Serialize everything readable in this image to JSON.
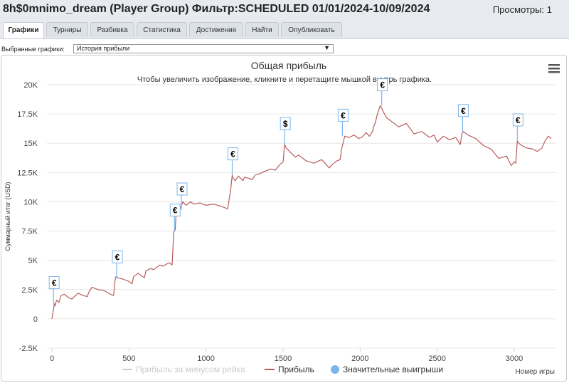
{
  "header": {
    "title": "8h$0mnimo_dream (Player Group) Фильтр:SCHEDULED 01/01/2024-10/09/2024",
    "views": "Просмотры: 1"
  },
  "tabs": [
    {
      "label": "Графики",
      "active": true
    },
    {
      "label": "Турниры"
    },
    {
      "label": "Разбивка"
    },
    {
      "label": "Статистика"
    },
    {
      "label": "Достижения"
    },
    {
      "label": "Найти"
    },
    {
      "label": "Опубликовать"
    }
  ],
  "graph_selector": {
    "label": "Выбранные графики:",
    "value": "История прибыли"
  },
  "chart_menu_icon": "hamburger-menu-icon",
  "chart_data": {
    "type": "line",
    "title": "Общая прибыль",
    "subtitle": "Чтобы увеличить изображение, кликните и перетащите мышкой внутрь графика.",
    "ylabel": "Суммарный итог (USD)",
    "xlabel": "Номер игры",
    "ylim": [
      -2500,
      20000
    ],
    "xlim": [
      0,
      3250
    ],
    "y_ticks": [
      "-2.5K",
      "0",
      "2.5K",
      "5K",
      "7.5K",
      "10K",
      "12.5K",
      "15K",
      "17.5K",
      "20K"
    ],
    "y_tick_values": [
      -2500,
      0,
      2500,
      5000,
      7500,
      10000,
      12500,
      15000,
      17500,
      20000
    ],
    "x_ticks": [
      "0",
      "500",
      "1000",
      "1500",
      "2000",
      "2500",
      "3000"
    ],
    "x_tick_values": [
      0,
      500,
      1000,
      1500,
      2000,
      2500,
      3000
    ],
    "grid": "horizontal",
    "legend_position": "bottom",
    "series": [
      {
        "name": "Прибыль за минусом рейка",
        "color": "#cccccc",
        "hidden": true,
        "x": [],
        "y": []
      },
      {
        "name": "Прибыль",
        "color": "#b85c5c",
        "x": [
          0,
          10,
          15,
          20,
          30,
          45,
          60,
          80,
          110,
          130,
          170,
          200,
          230,
          240,
          260,
          300,
          340,
          380,
          400,
          410,
          415,
          430,
          460,
          500,
          520,
          530,
          560,
          600,
          610,
          640,
          660,
          700,
          720,
          760,
          780,
          790,
          800,
          805,
          820,
          835,
          850,
          870,
          900,
          920,
          960,
          1000,
          1050,
          1100,
          1140,
          1160,
          1170,
          1175,
          1190,
          1210,
          1240,
          1250,
          1280,
          1300,
          1320,
          1350,
          1380,
          1420,
          1450,
          1480,
          1500,
          1510,
          1520,
          1550,
          1580,
          1600,
          1650,
          1700,
          1750,
          1800,
          1820,
          1850,
          1870,
          1880,
          1900,
          1930,
          1960,
          1990,
          2010,
          2040,
          2060,
          2080,
          2090,
          2100,
          2110,
          2130,
          2140,
          2150,
          2170,
          2200,
          2250,
          2300,
          2350,
          2400,
          2450,
          2480,
          2500,
          2540,
          2580,
          2620,
          2650,
          2660,
          2670,
          2700,
          2750,
          2800,
          2850,
          2900,
          2950,
          2980,
          3000,
          3010,
          3020,
          3030,
          3050,
          3080,
          3120,
          3150,
          3180,
          3200,
          3220,
          3240
        ],
        "y": [
          0,
          800,
          1300,
          1100,
          1600,
          1400,
          2000,
          2100,
          1800,
          1700,
          2200,
          2000,
          1900,
          2300,
          2700,
          2500,
          2400,
          2100,
          2000,
          3300,
          3600,
          3500,
          3400,
          3200,
          3000,
          3600,
          3900,
          3500,
          4100,
          4300,
          4200,
          4600,
          4500,
          4800,
          4600,
          7400,
          7600,
          8800,
          9300,
          9500,
          10000,
          9700,
          10000,
          9800,
          9900,
          9700,
          9800,
          9600,
          9400,
          11000,
          12300,
          12000,
          11800,
          12200,
          11800,
          12100,
          12000,
          11900,
          12300,
          12400,
          12600,
          12800,
          12700,
          13200,
          13400,
          14900,
          14600,
          14200,
          13800,
          14000,
          13500,
          13300,
          13600,
          12900,
          13200,
          13500,
          13600,
          14500,
          15600,
          15500,
          15700,
          15400,
          15500,
          15900,
          15600,
          16000,
          16500,
          16800,
          17400,
          18200,
          18000,
          17700,
          17200,
          16900,
          16400,
          16700,
          15800,
          16000,
          15500,
          15700,
          15100,
          15600,
          15300,
          15500,
          14900,
          15800,
          16000,
          15700,
          15400,
          14800,
          14500,
          13700,
          13900,
          13100,
          13400,
          13300,
          15200,
          15000,
          14800,
          14600,
          14500,
          14300,
          14600,
          15200,
          15600,
          15400
        ]
      },
      {
        "name": "Значительные выигрыши",
        "color": "#7cb5ec",
        "markers": [
          {
            "x": 10,
            "y": 1300,
            "label": "€"
          },
          {
            "x": 420,
            "y": 3500,
            "label": "€"
          },
          {
            "x": 795,
            "y": 7500,
            "label": "€"
          },
          {
            "x": 840,
            "y": 9300,
            "label": "€"
          },
          {
            "x": 1170,
            "y": 12300,
            "label": "€"
          },
          {
            "x": 1510,
            "y": 14900,
            "label": "$"
          },
          {
            "x": 1885,
            "y": 15600,
            "label": "€"
          },
          {
            "x": 2140,
            "y": 18200,
            "label": "€"
          },
          {
            "x": 2665,
            "y": 16000,
            "label": "€"
          },
          {
            "x": 3020,
            "y": 15200,
            "label": "€"
          }
        ]
      }
    ]
  }
}
